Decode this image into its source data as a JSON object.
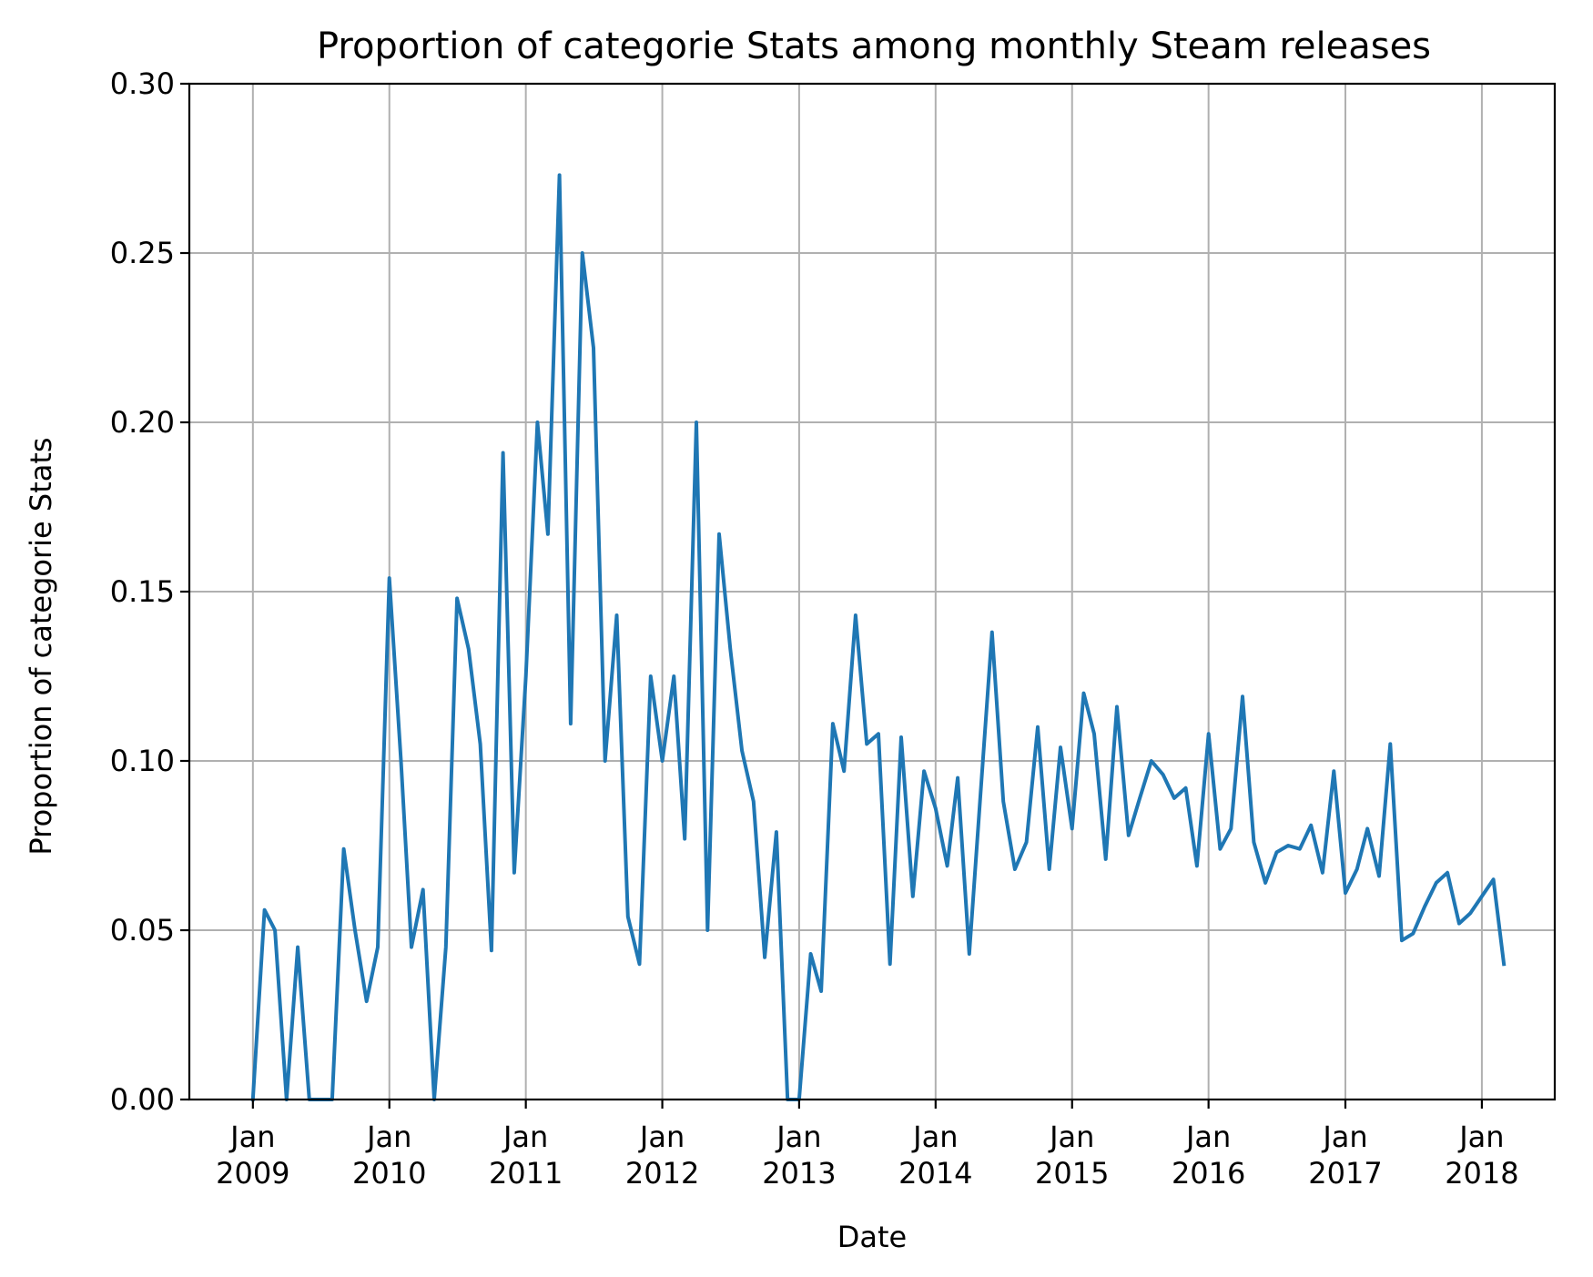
{
  "chart_data": {
    "type": "line",
    "title": "Proportion of categorie Stats among monthly Steam releases",
    "xlabel": "Date",
    "ylabel": "Proportion of categorie Stats",
    "ylim": [
      0.0,
      0.3
    ],
    "xlim": [
      "2008-07-15",
      "2018-07-15"
    ],
    "grid": true,
    "line_color": "#1f77b4",
    "y_ticks": [
      {
        "value": 0.0,
        "label": "0.00"
      },
      {
        "value": 0.05,
        "label": "0.05"
      },
      {
        "value": 0.1,
        "label": "0.10"
      },
      {
        "value": 0.15,
        "label": "0.15"
      },
      {
        "value": 0.2,
        "label": "0.20"
      },
      {
        "value": 0.25,
        "label": "0.25"
      },
      {
        "value": 0.3,
        "label": "0.30"
      }
    ],
    "x_ticks": [
      {
        "date": "2009-01",
        "month": "Jan",
        "year": "2009"
      },
      {
        "date": "2010-01",
        "month": "Jan",
        "year": "2010"
      },
      {
        "date": "2011-01",
        "month": "Jan",
        "year": "2011"
      },
      {
        "date": "2012-01",
        "month": "Jan",
        "year": "2012"
      },
      {
        "date": "2013-01",
        "month": "Jan",
        "year": "2013"
      },
      {
        "date": "2014-01",
        "month": "Jan",
        "year": "2014"
      },
      {
        "date": "2015-01",
        "month": "Jan",
        "year": "2015"
      },
      {
        "date": "2016-01",
        "month": "Jan",
        "year": "2016"
      },
      {
        "date": "2017-01",
        "month": "Jan",
        "year": "2017"
      },
      {
        "date": "2018-01",
        "month": "Jan",
        "year": "2018"
      }
    ],
    "series": [
      {
        "x": [
          "2009-01",
          "2009-02",
          "2009-03",
          "2009-04",
          "2009-05",
          "2009-06",
          "2009-07",
          "2009-08",
          "2009-09",
          "2009-10",
          "2009-11",
          "2009-12",
          "2010-01",
          "2010-02",
          "2010-03",
          "2010-04",
          "2010-05",
          "2010-06",
          "2010-07",
          "2010-08",
          "2010-09",
          "2010-10",
          "2010-11",
          "2010-12",
          "2011-01",
          "2011-02",
          "2011-03",
          "2011-04",
          "2011-05",
          "2011-06",
          "2011-07",
          "2011-08",
          "2011-09",
          "2011-10",
          "2011-11",
          "2011-12",
          "2012-01",
          "2012-02",
          "2012-03",
          "2012-04",
          "2012-05",
          "2012-06",
          "2012-07",
          "2012-08",
          "2012-09",
          "2012-10",
          "2012-11",
          "2012-12",
          "2013-01",
          "2013-02",
          "2013-03",
          "2013-04",
          "2013-05",
          "2013-06",
          "2013-07",
          "2013-08",
          "2013-09",
          "2013-10",
          "2013-11",
          "2013-12",
          "2014-01",
          "2014-02",
          "2014-03",
          "2014-04",
          "2014-05",
          "2014-06",
          "2014-07",
          "2014-08",
          "2014-09",
          "2014-10",
          "2014-11",
          "2014-12",
          "2015-01",
          "2015-02",
          "2015-03",
          "2015-04",
          "2015-05",
          "2015-06",
          "2015-07",
          "2015-08",
          "2015-09",
          "2015-10",
          "2015-11",
          "2015-12",
          "2016-01",
          "2016-02",
          "2016-03",
          "2016-04",
          "2016-05",
          "2016-06",
          "2016-07",
          "2016-08",
          "2016-09",
          "2016-10",
          "2016-11",
          "2016-12",
          "2017-01",
          "2017-02",
          "2017-03",
          "2017-04",
          "2017-05",
          "2017-06",
          "2017-07",
          "2017-08",
          "2017-09",
          "2017-10",
          "2017-11",
          "2017-12",
          "2018-01",
          "2018-02",
          "2018-03"
        ],
        "values": [
          0.0,
          0.056,
          0.05,
          0.0,
          0.045,
          0.0,
          0.0,
          0.0,
          0.074,
          0.05,
          0.029,
          0.045,
          0.154,
          0.1,
          0.045,
          0.062,
          0.0,
          0.045,
          0.148,
          0.133,
          0.105,
          0.044,
          0.191,
          0.067,
          0.125,
          0.2,
          0.167,
          0.273,
          0.111,
          0.25,
          0.222,
          0.1,
          0.143,
          0.054,
          0.04,
          0.125,
          0.1,
          0.125,
          0.077,
          0.2,
          0.05,
          0.167,
          0.133,
          0.103,
          0.088,
          0.042,
          0.079,
          0.0,
          0.0,
          0.043,
          0.032,
          0.111,
          0.097,
          0.143,
          0.105,
          0.108,
          0.04,
          0.107,
          0.06,
          0.097,
          0.086,
          0.069,
          0.095,
          0.043,
          0.09,
          0.138,
          0.088,
          0.068,
          0.076,
          0.11,
          0.068,
          0.104,
          0.08,
          0.12,
          0.108,
          0.071,
          0.116,
          0.078,
          0.089,
          0.1,
          0.096,
          0.089,
          0.092,
          0.069,
          0.108,
          0.074,
          0.08,
          0.119,
          0.076,
          0.064,
          0.073,
          0.075,
          0.074,
          0.081,
          0.067,
          0.097,
          0.061,
          0.068,
          0.08,
          0.066,
          0.105,
          0.047,
          0.049,
          0.057,
          0.064,
          0.067,
          0.052,
          0.055,
          0.06,
          0.065,
          0.04
        ]
      }
    ]
  }
}
